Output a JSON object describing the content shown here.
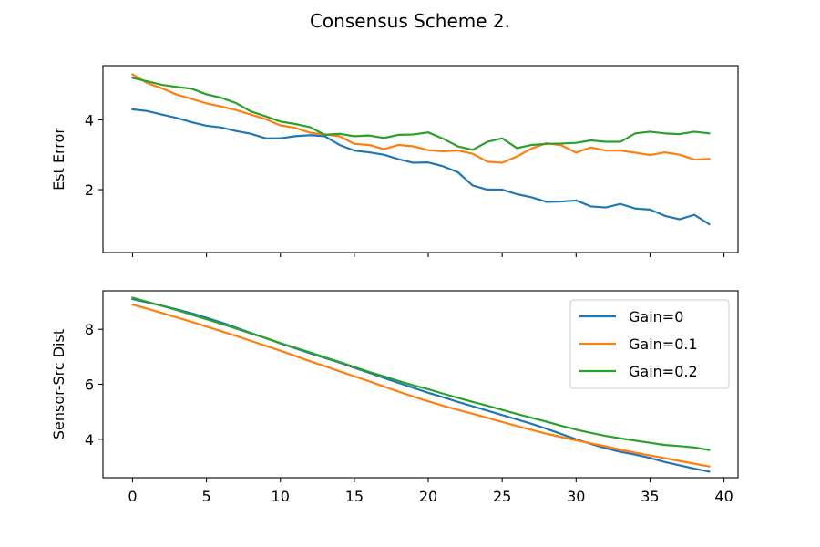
{
  "title": "Consensus Scheme 2.",
  "colors": {
    "series": [
      "#1f77b4",
      "#ff7f0e",
      "#2ca02c"
    ]
  },
  "chart_data": [
    {
      "type": "line",
      "ylabel": "Est Error",
      "xlabel": "",
      "xlim": [
        -2,
        40.95
      ],
      "ylim": [
        0.2,
        5.55
      ],
      "xticks": [
        0,
        5,
        10,
        15,
        20,
        25,
        30,
        35,
        40
      ],
      "yticks": [
        2,
        4
      ],
      "show_xtick_labels": false,
      "legend": null,
      "x": [
        0,
        1,
        2,
        3,
        4,
        5,
        6,
        7,
        8,
        9,
        10,
        11,
        12,
        13,
        14,
        15,
        16,
        17,
        18,
        19,
        20,
        21,
        22,
        23,
        24,
        25,
        26,
        27,
        28,
        29,
        30,
        31,
        32,
        33,
        34,
        35,
        36,
        37,
        38,
        39
      ],
      "series": [
        {
          "name": "Gain=0",
          "values": [
            4.3,
            4.25,
            4.15,
            4.05,
            3.93,
            3.83,
            3.78,
            3.68,
            3.6,
            3.47,
            3.47,
            3.53,
            3.56,
            3.53,
            3.28,
            3.12,
            3.07,
            3.0,
            2.87,
            2.77,
            2.78,
            2.67,
            2.5,
            2.12,
            2.0,
            2.0,
            1.87,
            1.78,
            1.65,
            1.66,
            1.69,
            1.52,
            1.49,
            1.59,
            1.46,
            1.43,
            1.25,
            1.15,
            1.28,
            1.01
          ]
        },
        {
          "name": "Gain=0.1",
          "values": [
            5.3,
            5.05,
            4.9,
            4.72,
            4.6,
            4.47,
            4.38,
            4.28,
            4.15,
            4.02,
            3.84,
            3.77,
            3.63,
            3.58,
            3.53,
            3.31,
            3.28,
            3.16,
            3.28,
            3.24,
            3.13,
            3.1,
            3.12,
            3.03,
            2.8,
            2.77,
            2.95,
            3.18,
            3.33,
            3.27,
            3.06,
            3.21,
            3.12,
            3.12,
            3.06,
            2.99,
            3.07,
            3.0,
            2.86,
            2.88
          ]
        },
        {
          "name": "Gain=0.2",
          "values": [
            5.2,
            5.1,
            5.0,
            4.94,
            4.89,
            4.73,
            4.63,
            4.48,
            4.24,
            4.1,
            3.95,
            3.88,
            3.79,
            3.57,
            3.6,
            3.53,
            3.55,
            3.48,
            3.57,
            3.58,
            3.64,
            3.46,
            3.24,
            3.14,
            3.37,
            3.47,
            3.19,
            3.28,
            3.31,
            3.32,
            3.34,
            3.41,
            3.37,
            3.37,
            3.61,
            3.66,
            3.61,
            3.59,
            3.66,
            3.61
          ]
        }
      ]
    },
    {
      "type": "line",
      "ylabel": "Sensor-Src Dist",
      "xlabel": "",
      "xlim": [
        -2,
        40.95
      ],
      "ylim": [
        2.6,
        9.4
      ],
      "xticks": [
        0,
        5,
        10,
        15,
        20,
        25,
        30,
        35,
        40
      ],
      "yticks": [
        4,
        6,
        8
      ],
      "show_xtick_labels": true,
      "legend": "top-right",
      "x": [
        0,
        1,
        2,
        3,
        4,
        5,
        6,
        7,
        8,
        9,
        10,
        11,
        12,
        13,
        14,
        15,
        16,
        17,
        18,
        19,
        20,
        21,
        22,
        23,
        24,
        25,
        26,
        27,
        28,
        29,
        30,
        31,
        32,
        33,
        34,
        35,
        36,
        37,
        38,
        39
      ],
      "series": [
        {
          "name": "Gain=0",
          "values": [
            9.1,
            8.98,
            8.86,
            8.72,
            8.58,
            8.42,
            8.25,
            8.06,
            7.87,
            7.68,
            7.49,
            7.31,
            7.13,
            6.96,
            6.79,
            6.6,
            6.42,
            6.23,
            6.05,
            5.87,
            5.69,
            5.53,
            5.36,
            5.2,
            5.04,
            4.88,
            4.72,
            4.56,
            4.38,
            4.19,
            4.0,
            3.83,
            3.67,
            3.54,
            3.44,
            3.32,
            3.17,
            3.05,
            2.93,
            2.82
          ]
        },
        {
          "name": "Gain=0.1",
          "values": [
            8.9,
            8.75,
            8.59,
            8.43,
            8.27,
            8.1,
            7.93,
            7.76,
            7.58,
            7.4,
            7.22,
            7.03,
            6.84,
            6.66,
            6.47,
            6.29,
            6.11,
            5.92,
            5.73,
            5.55,
            5.38,
            5.22,
            5.07,
            4.93,
            4.78,
            4.63,
            4.48,
            4.34,
            4.2,
            4.08,
            3.96,
            3.85,
            3.74,
            3.62,
            3.51,
            3.41,
            3.31,
            3.21,
            3.11,
            3.01
          ]
        },
        {
          "name": "Gain=0.2",
          "values": [
            9.15,
            9.0,
            8.85,
            8.7,
            8.53,
            8.37,
            8.2,
            8.03,
            7.85,
            7.68,
            7.5,
            7.33,
            7.16,
            6.98,
            6.81,
            6.63,
            6.45,
            6.29,
            6.12,
            5.96,
            5.82,
            5.66,
            5.51,
            5.36,
            5.22,
            5.07,
            4.92,
            4.78,
            4.64,
            4.49,
            4.35,
            4.23,
            4.12,
            4.03,
            3.95,
            3.87,
            3.79,
            3.75,
            3.7,
            3.61
          ]
        }
      ]
    }
  ]
}
